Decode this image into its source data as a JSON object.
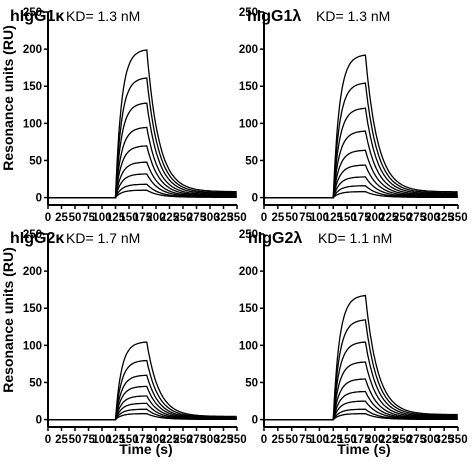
{
  "axis_titles": {
    "y_top": "Resonance units (RU)",
    "y_bottom": "Resonance units (RU)",
    "x_left": "Time (s)",
    "x_right": "Time (s)"
  },
  "chart_data": [
    {
      "type": "line",
      "title": "hIgG1κ",
      "annotation": "KD= 1.3 nM",
      "xlabel": "",
      "ylabel": "Resonance units (RU)",
      "xlim": [
        0,
        350
      ],
      "ylim": [
        -10,
        250
      ],
      "xticks": [
        0,
        25,
        50,
        75,
        100,
        125,
        150,
        175,
        200,
        225,
        250,
        275,
        300,
        325,
        350
      ],
      "yticks": [
        0,
        50,
        100,
        150,
        200,
        250
      ],
      "association_start": 125,
      "dissociation_start": 183,
      "series_plateaus": [
        200,
        162,
        128,
        95,
        70,
        48,
        32,
        18,
        10
      ]
    },
    {
      "type": "line",
      "title": "hIgG1λ",
      "annotation": "KD= 1.3 nM",
      "xlabel": "",
      "ylabel": "",
      "xlim": [
        0,
        350
      ],
      "ylim": [
        -10,
        250
      ],
      "xticks": [
        0,
        25,
        50,
        75,
        100,
        125,
        150,
        175,
        200,
        225,
        250,
        275,
        300,
        325,
        350
      ],
      "yticks": [
        0,
        50,
        100,
        150,
        200,
        250
      ],
      "association_start": 125,
      "dissociation_start": 183,
      "series_plateaus": [
        193,
        155,
        121,
        90,
        64,
        44,
        28,
        16,
        8
      ]
    },
    {
      "type": "line",
      "title": "hIgG2κ",
      "annotation": "KD= 1.7 nM",
      "xlabel": "Time (s)",
      "ylabel": "Resonance units (RU)",
      "xlim": [
        0,
        350
      ],
      "ylim": [
        -10,
        250
      ],
      "xticks": [
        0,
        25,
        50,
        75,
        100,
        125,
        150,
        175,
        200,
        225,
        250,
        275,
        300,
        325,
        350
      ],
      "yticks": [
        0,
        50,
        100,
        150,
        200,
        250
      ],
      "association_start": 125,
      "dissociation_start": 183,
      "series_plateaus": [
        105,
        80,
        60,
        45,
        32,
        22,
        14,
        8
      ]
    },
    {
      "type": "line",
      "title": "hIgG2λ",
      "annotation": "KD= 1.1 nM",
      "xlabel": "Time (s)",
      "ylabel": "",
      "xlim": [
        0,
        350
      ],
      "ylim": [
        -10,
        250
      ],
      "xticks": [
        0,
        25,
        50,
        75,
        100,
        125,
        150,
        175,
        200,
        225,
        250,
        275,
        300,
        325,
        350
      ],
      "yticks": [
        0,
        50,
        100,
        150,
        200,
        250
      ],
      "association_start": 125,
      "dissociation_start": 183,
      "series_plateaus": [
        168,
        135,
        105,
        78,
        55,
        38,
        25,
        14,
        8
      ]
    }
  ]
}
